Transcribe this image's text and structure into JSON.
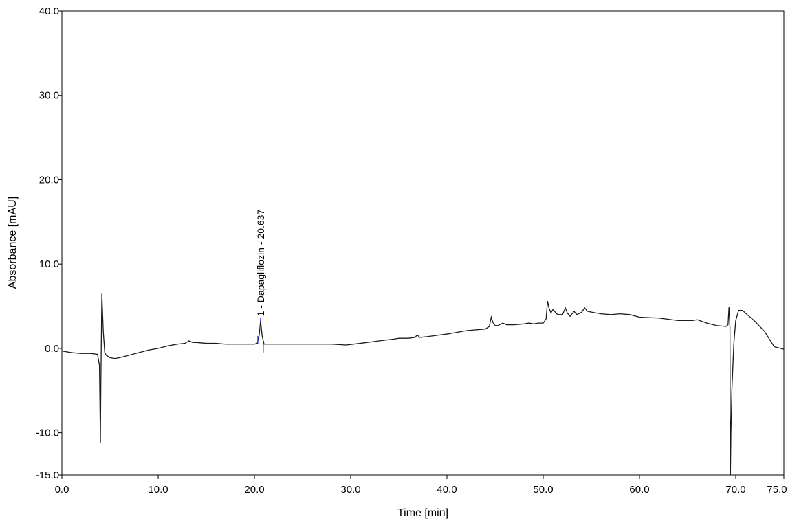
{
  "chart_data": {
    "type": "line",
    "title": "",
    "xlabel": "Time [min]",
    "ylabel": "Absorbance [mAU]",
    "xlim": [
      0,
      75
    ],
    "ylim": [
      -15,
      40
    ],
    "x_ticks": [
      0,
      10,
      20,
      30,
      40,
      50,
      60,
      70,
      75
    ],
    "x_tick_labels": [
      "0.0",
      "10.0",
      "20.0",
      "30.0",
      "40.0",
      "50.0",
      "60.0",
      "70.0",
      "75.0"
    ],
    "y_ticks": [
      -15,
      -10,
      0,
      10,
      20,
      30,
      40
    ],
    "y_tick_labels": [
      "-15.0",
      "-10.0",
      "0.0",
      "10.0",
      "20.0",
      "30.0",
      "40.0"
    ],
    "grid": false,
    "line_color": "#1a1a1a",
    "peak_marker_colors": {
      "start": "#2a2adf",
      "end": "#d01010"
    },
    "series": [
      {
        "x": [
          0,
          1,
          2,
          3,
          3.7,
          3.9,
          4.0,
          4.05,
          4.15,
          4.3,
          4.45,
          4.6,
          5.0,
          5.5,
          6,
          7,
          8,
          9,
          10,
          11,
          12,
          12.8,
          13.2,
          13.6,
          14,
          15,
          16,
          17,
          18,
          19,
          20,
          20.3,
          20.5,
          20.637,
          20.8,
          21.0,
          21.3,
          22,
          25,
          28,
          29.5,
          31,
          33,
          34.5,
          35,
          36,
          36.7,
          36.9,
          37.2,
          38,
          40,
          41,
          42,
          43,
          44,
          44.4,
          44.6,
          44.8,
          45.0,
          45.3,
          45.8,
          46.2,
          47,
          48,
          48.5,
          49,
          49.5,
          50,
          50.3,
          50.45,
          50.6,
          50.8,
          51,
          51.5,
          52,
          52.3,
          52.5,
          52.8,
          53.2,
          53.5,
          54,
          54.3,
          54.6,
          55,
          56,
          57,
          58,
          59,
          60,
          62,
          64,
          65.5,
          66,
          67,
          68,
          69,
          69.2,
          69.3,
          69.4,
          69.45,
          69.5,
          69.6,
          69.8,
          70.0,
          70.3,
          70.7,
          71.2,
          72,
          73,
          74,
          75
        ],
        "y": [
          -0.3,
          -0.5,
          -0.6,
          -0.6,
          -0.7,
          -2.0,
          -11.2,
          -4.0,
          6.5,
          2.0,
          -0.5,
          -0.8,
          -1.1,
          -1.2,
          -1.1,
          -0.8,
          -0.5,
          -0.2,
          0,
          0.3,
          0.5,
          0.6,
          0.9,
          0.7,
          0.7,
          0.6,
          0.6,
          0.5,
          0.5,
          0.5,
          0.5,
          0.6,
          1.6,
          3.3,
          1.5,
          0.5,
          0.5,
          0.5,
          0.5,
          0.5,
          0.4,
          0.6,
          0.9,
          1.1,
          1.2,
          1.2,
          1.3,
          1.6,
          1.3,
          1.4,
          1.7,
          1.9,
          2.1,
          2.2,
          2.3,
          2.6,
          3.7,
          3.0,
          2.7,
          2.7,
          3.0,
          2.8,
          2.8,
          2.9,
          3.0,
          2.9,
          3.0,
          3.0,
          3.5,
          5.6,
          4.8,
          4.2,
          4.6,
          4.0,
          4.0,
          4.8,
          4.2,
          3.8,
          4.4,
          4.0,
          4.3,
          4.8,
          4.4,
          4.3,
          4.1,
          4.0,
          4.1,
          4.0,
          3.7,
          3.6,
          3.3,
          3.3,
          3.4,
          3.0,
          2.7,
          2.6,
          2.8,
          4.9,
          2.5,
          -15.0,
          -10.0,
          -5.0,
          0.5,
          3.3,
          4.5,
          4.5,
          4.0,
          3.2,
          2.0,
          0.2,
          -0.1
        ]
      }
    ],
    "annotations": [
      {
        "label": "1 - Dapagliflozin - 20.637",
        "x": 20.637,
        "y": 3.3,
        "orientation": "vertical"
      }
    ]
  }
}
